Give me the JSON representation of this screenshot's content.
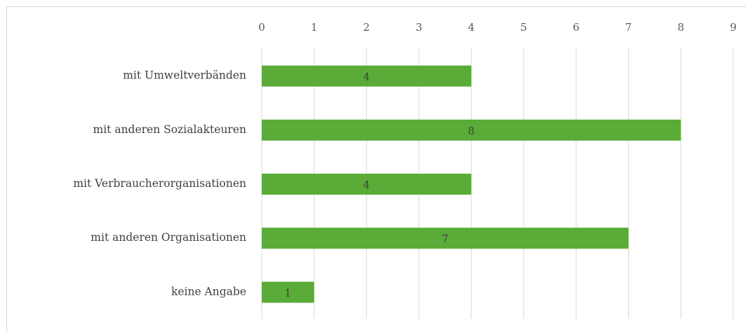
{
  "chart_data": {
    "type": "bar",
    "orientation": "horizontal",
    "title": "",
    "xlabel": "",
    "ylabel": "",
    "categories": [
      "mit Umweltverbänden",
      "mit anderen Sozialakteuren",
      "mit Verbraucherorganisationen",
      "mit anderen Organisationen",
      "keine Angabe"
    ],
    "values": [
      4,
      8,
      4,
      7,
      1
    ],
    "xlim": [
      0,
      9
    ],
    "ticks": [
      "0",
      "1",
      "2",
      "3",
      "4",
      "5",
      "6",
      "7",
      "8",
      "9"
    ],
    "axis_position": "top",
    "grid": true,
    "legend": "none",
    "bar_color": "#5aab37",
    "grid_color": "#d9d9d9",
    "data_labels": true
  }
}
